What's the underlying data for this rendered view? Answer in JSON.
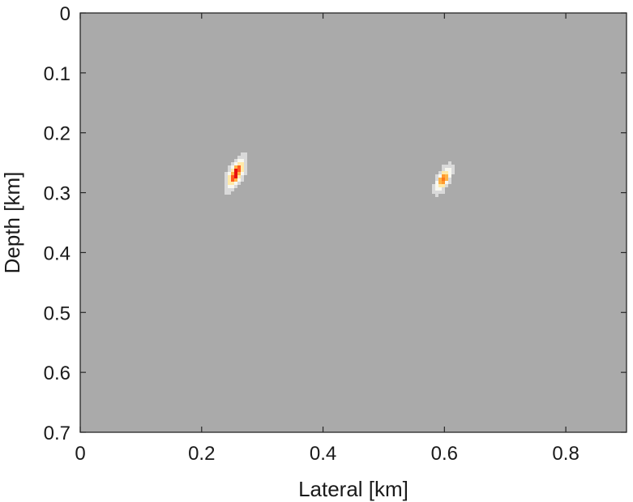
{
  "chart_data": {
    "type": "heatmap",
    "title": "",
    "xlabel": "Lateral [km]",
    "ylabel": "Depth [km]",
    "xlim": [
      0,
      0.9
    ],
    "ylim": [
      0.7,
      0
    ],
    "y_axis_reversed": true,
    "xticks": [
      0,
      0.2,
      0.4,
      0.6,
      0.8
    ],
    "xtick_labels": [
      "0",
      "0.2",
      "0.4",
      "0.6",
      "0.8"
    ],
    "yticks": [
      0,
      0.1,
      0.2,
      0.3,
      0.4,
      0.5,
      0.6,
      0.7
    ],
    "ytick_labels": [
      "0",
      "0.1",
      "0.2",
      "0.3",
      "0.4",
      "0.5",
      "0.6",
      "0.7"
    ],
    "grid": false,
    "colormap": "gray-to-hot",
    "background_color": "#aaaaaa",
    "features": [
      {
        "x": 0.256,
        "y": 0.268,
        "intensity": 1.0,
        "extent_x": 0.012,
        "extent_y": 0.03,
        "orientation": "tilted"
      },
      {
        "x": 0.598,
        "y": 0.278,
        "intensity": 0.6,
        "extent_x": 0.01,
        "extent_y": 0.024,
        "orientation": "tilted"
      }
    ]
  }
}
